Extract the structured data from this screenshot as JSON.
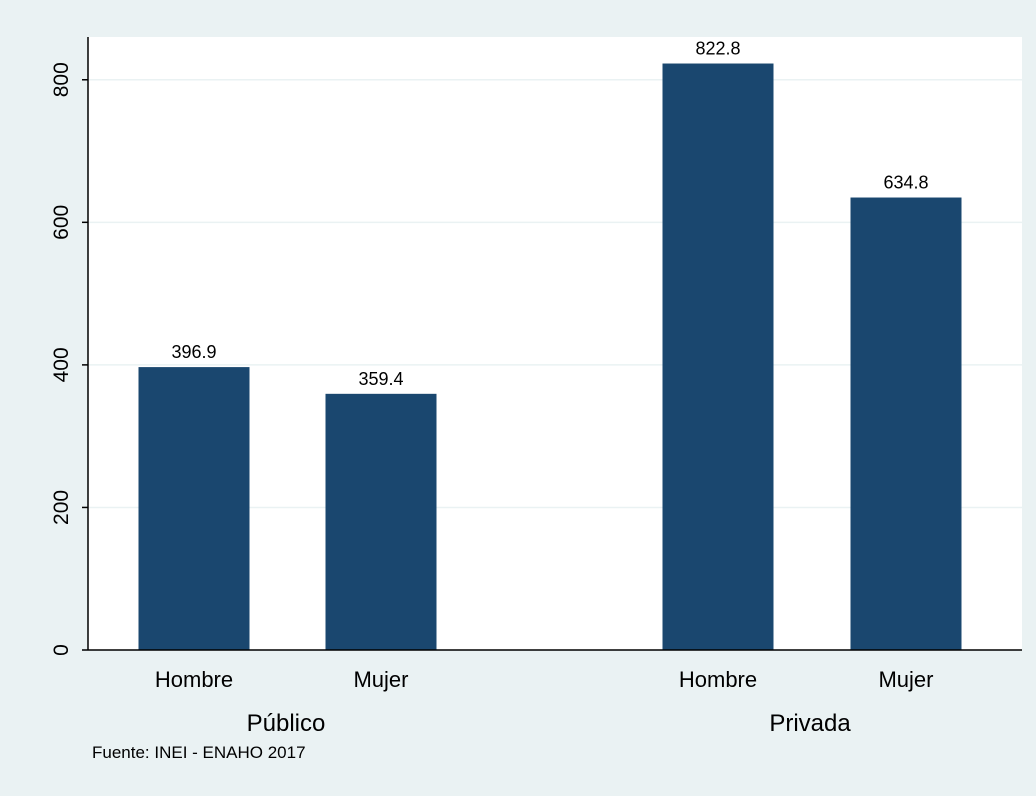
{
  "chart_data": {
    "type": "bar",
    "groups": [
      {
        "name": "Público",
        "bars": [
          {
            "category": "Hombre",
            "value": 396.9,
            "label": "396.9"
          },
          {
            "category": "Mujer",
            "value": 359.4,
            "label": "359.4"
          }
        ]
      },
      {
        "name": "Privada",
        "bars": [
          {
            "category": "Hombre",
            "value": 822.8,
            "label": "822.8"
          },
          {
            "category": "Mujer",
            "value": 634.8,
            "label": "634.8"
          }
        ]
      }
    ],
    "yticks": [
      "0",
      "200",
      "400",
      "600",
      "800"
    ],
    "ylim": [
      0,
      860
    ],
    "title": "",
    "xlabel": "",
    "ylabel": "",
    "note": "Fuente: INEI - ENAHO 2017",
    "grid": true,
    "legend": "none",
    "colors": {
      "bar": "#1a476f",
      "outer_background": "#eaf2f3",
      "plot_background": "#ffffff",
      "gridline": "#eaf2f3",
      "axis": "#000000",
      "text": "#000000"
    }
  }
}
